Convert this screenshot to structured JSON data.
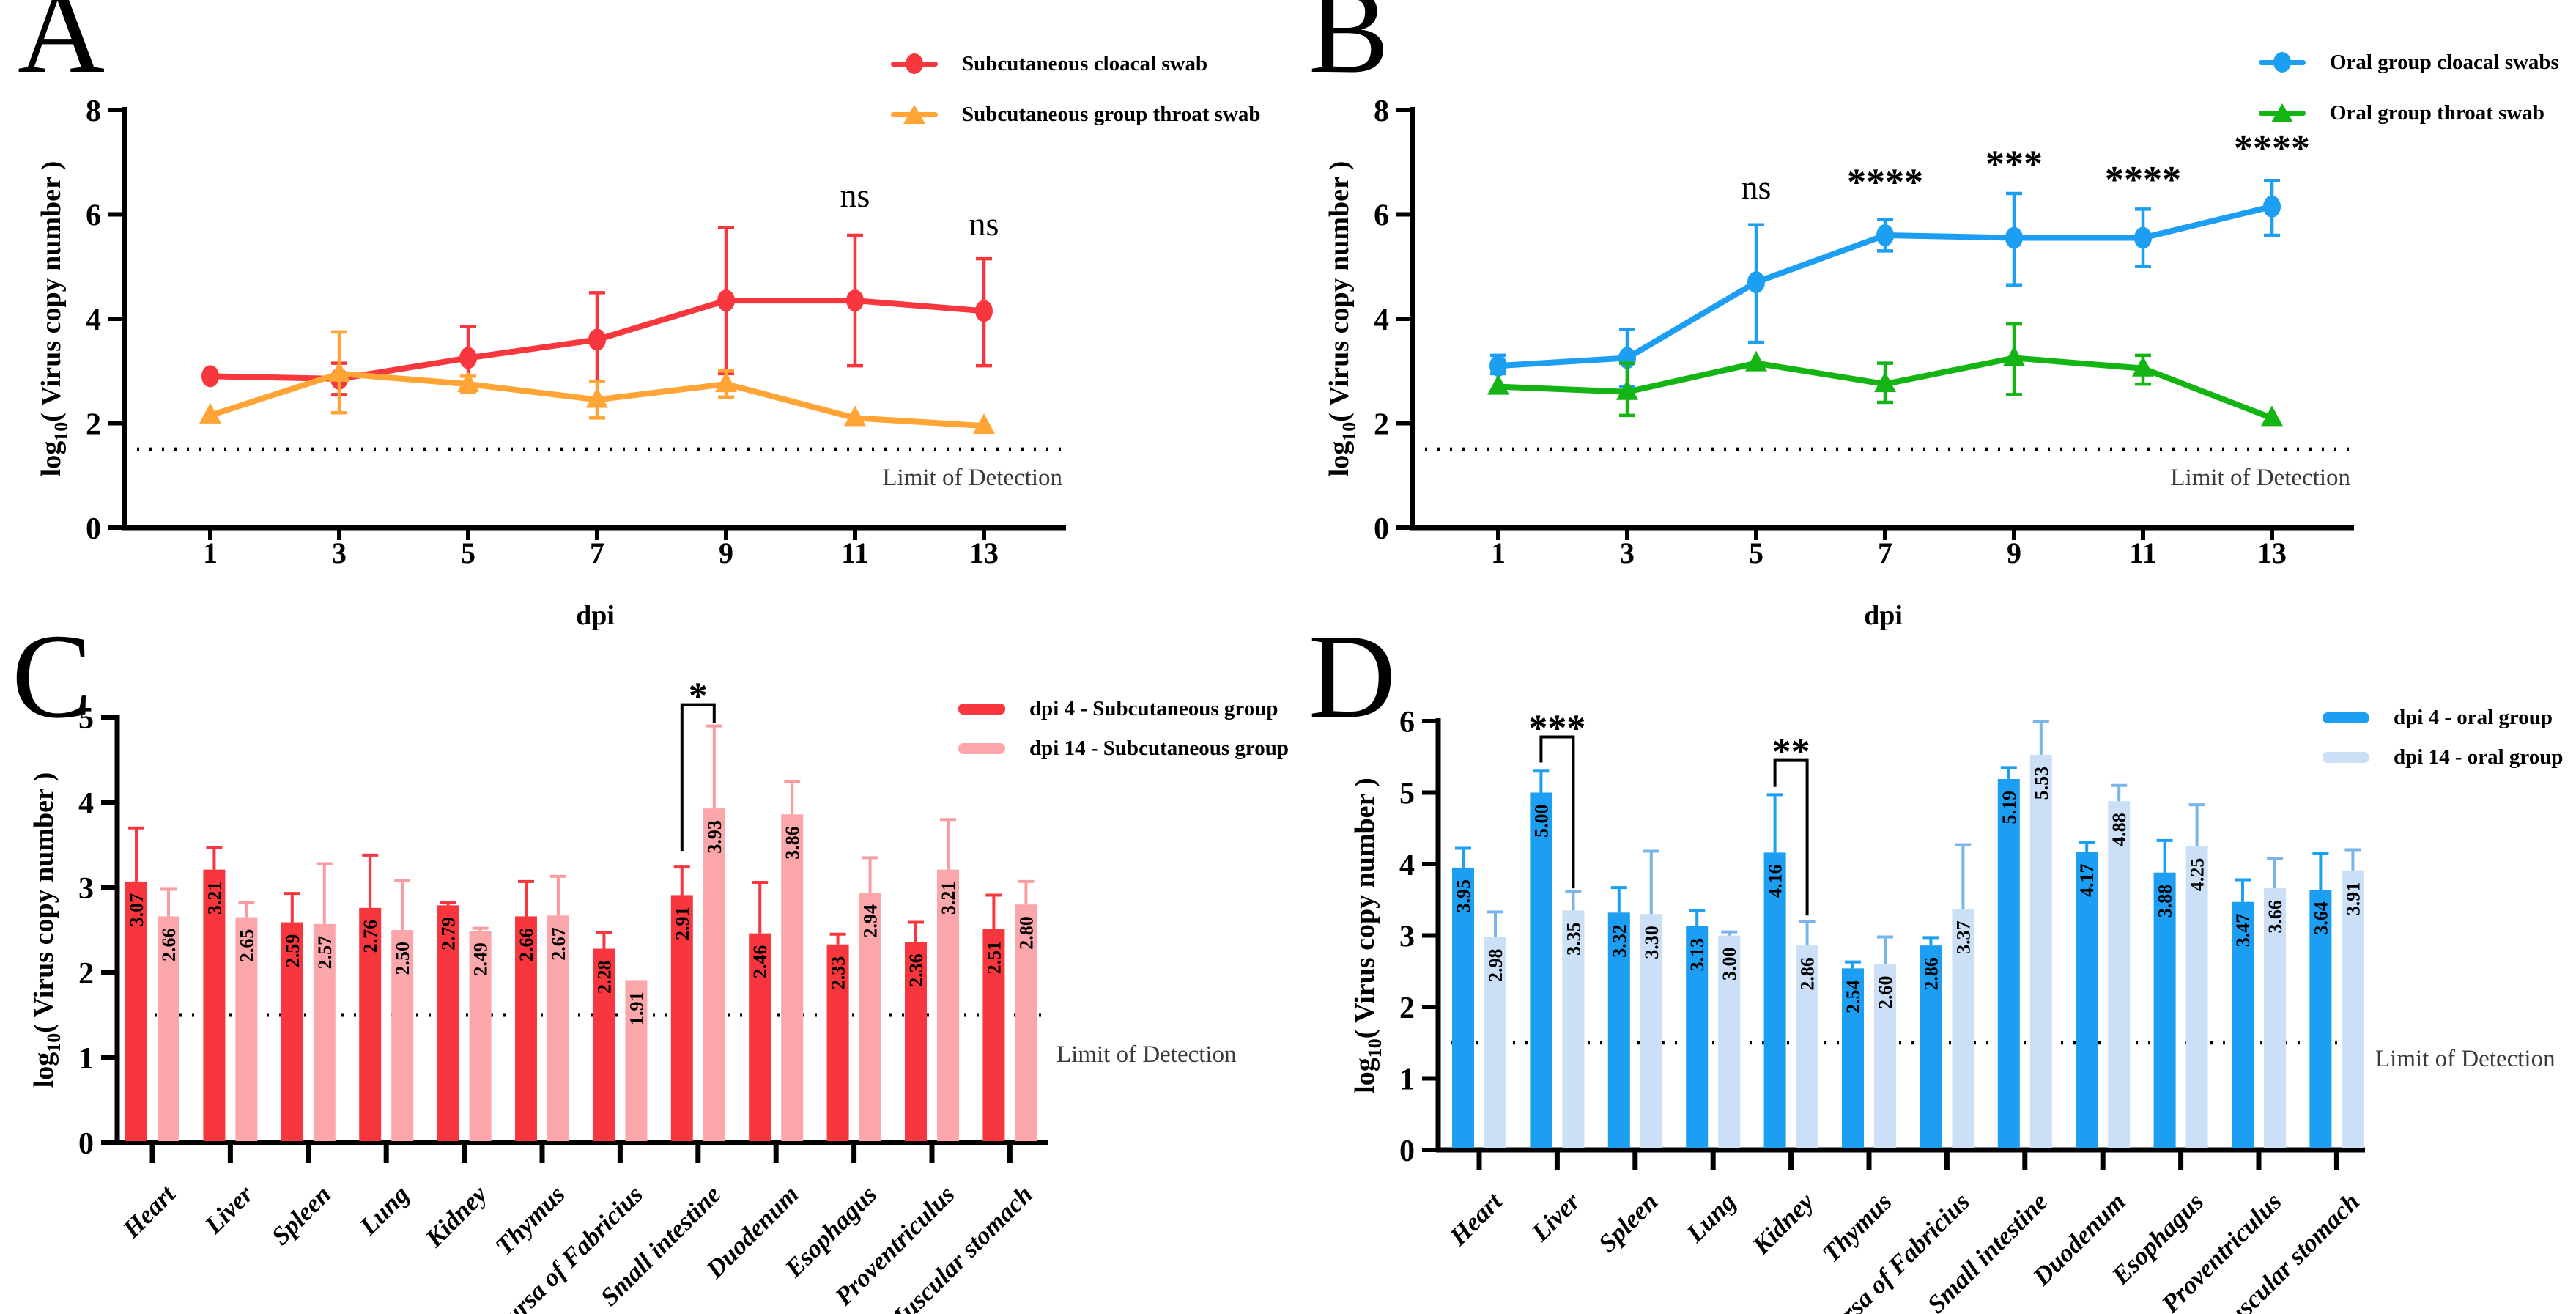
{
  "figure": {
    "background": "#ffffff"
  },
  "chart_data": [
    {
      "panel": "A",
      "type": "line",
      "xlabel": "dpi",
      "ylabel": "log10( Virus copy number )",
      "ylabel_parts": {
        "prefix": "log",
        "sub": "10",
        "rest": "( Virus copy number )"
      },
      "xticks": [
        1,
        3,
        5,
        7,
        9,
        11,
        13
      ],
      "ylim": [
        0,
        8
      ],
      "yticks": [
        0,
        2,
        4,
        6,
        8
      ],
      "limit_of_detection": {
        "value": 1.5,
        "label": "Limit of Detection"
      },
      "series": [
        {
          "name": "Subcutaneous cloacal swab",
          "color": "#F8363D",
          "marker": "circle",
          "x": [
            1,
            3,
            5,
            7,
            9,
            11,
            13
          ],
          "values": [
            2.9,
            2.85,
            3.25,
            3.6,
            4.35,
            4.35,
            4.15
          ],
          "err_hi": [
            null,
            3.15,
            3.85,
            4.5,
            5.75,
            5.6,
            5.15
          ],
          "err_lo": [
            null,
            2.55,
            2.65,
            2.8,
            2.95,
            3.1,
            3.1
          ]
        },
        {
          "name": "Subcutaneous group throat swab",
          "color": "#FFA435",
          "marker": "triangle",
          "x": [
            1,
            3,
            5,
            7,
            9,
            11,
            13
          ],
          "values": [
            2.15,
            2.95,
            2.75,
            2.45,
            2.75,
            2.1,
            1.95
          ],
          "err_hi": [
            null,
            3.75,
            2.9,
            2.8,
            3.0,
            null,
            null
          ],
          "err_lo": [
            null,
            2.2,
            2.6,
            2.1,
            2.5,
            null,
            null
          ]
        }
      ],
      "annotations": [
        {
          "x": 11,
          "y": 6.15,
          "text": "ns"
        },
        {
          "x": 13,
          "y": 5.6,
          "text": "ns"
        }
      ]
    },
    {
      "panel": "B",
      "type": "line",
      "xlabel": "dpi",
      "ylabel": "log10( Virus copy number )",
      "ylabel_parts": {
        "prefix": "log",
        "sub": "10",
        "rest": "( Virus copy number )"
      },
      "xticks": [
        1,
        3,
        5,
        7,
        9,
        11,
        13
      ],
      "ylim": [
        0,
        8
      ],
      "yticks": [
        0,
        2,
        4,
        6,
        8
      ],
      "limit_of_detection": {
        "value": 1.5,
        "label": "Limit of Detection"
      },
      "series": [
        {
          "name": "Oral group cloacal swabs",
          "color": "#1C9EF2",
          "marker": "circle",
          "x": [
            1,
            3,
            5,
            7,
            9,
            11,
            13
          ],
          "values": [
            3.1,
            3.25,
            4.7,
            5.6,
            5.55,
            5.55,
            6.15
          ],
          "err_hi": [
            3.3,
            3.8,
            5.8,
            5.9,
            6.4,
            6.1,
            6.65
          ],
          "err_lo": [
            2.95,
            2.7,
            3.55,
            5.3,
            4.65,
            5.0,
            5.6
          ]
        },
        {
          "name": "Oral group throat swab",
          "color": "#14B414",
          "marker": "triangle",
          "x": [
            1,
            3,
            5,
            7,
            9,
            11,
            13
          ],
          "values": [
            2.7,
            2.6,
            3.15,
            2.75,
            3.25,
            3.05,
            2.1
          ],
          "err_hi": [
            null,
            3.15,
            null,
            3.15,
            3.9,
            3.3,
            null
          ],
          "err_lo": [
            null,
            2.15,
            null,
            2.4,
            2.55,
            2.75,
            null
          ]
        }
      ],
      "annotations": [
        {
          "x": 5,
          "y": 6.3,
          "text": "ns"
        },
        {
          "x": 7,
          "y": 6.55,
          "text": "****"
        },
        {
          "x": 9,
          "y": 6.9,
          "text": "***"
        },
        {
          "x": 11,
          "y": 6.6,
          "text": "****"
        },
        {
          "x": 13,
          "y": 7.2,
          "text": "****"
        }
      ]
    },
    {
      "panel": "C",
      "type": "bar",
      "ylabel": "log10( Virus copy number )",
      "ylabel_parts": {
        "prefix": "log",
        "sub": "10",
        "rest": "( Virus copy number )"
      },
      "categories": [
        "Heart",
        "Liver",
        "Spleen",
        "Lung",
        "Kidney",
        "Thymus",
        "Bursa of Fabricius",
        "Small intestine",
        "Duodenum",
        "Esophagus",
        "Proventriculus",
        "Muscular stomach"
      ],
      "ylim": [
        0,
        5
      ],
      "yticks": [
        0,
        1,
        2,
        3,
        4,
        5
      ],
      "limit_of_detection": {
        "value": 1.5,
        "label": "Limit of Detection"
      },
      "series": [
        {
          "name": "dpi 4 - Subcutaneous group",
          "color": "#F8363D",
          "err_color": "#F8363D",
          "values": [
            3.07,
            3.21,
            2.59,
            2.76,
            2.79,
            2.66,
            2.28,
            2.91,
            2.46,
            2.33,
            2.36,
            2.51
          ],
          "err_hi": [
            3.7,
            3.47,
            2.93,
            3.38,
            2.82,
            3.07,
            2.47,
            3.24,
            3.06,
            2.45,
            2.59,
            2.91
          ]
        },
        {
          "name": "dpi 14 - Subcutaneous group",
          "color": "#FBA6AB",
          "err_color": "#F99CA2",
          "values": [
            2.66,
            2.65,
            2.57,
            2.5,
            2.49,
            2.67,
            1.91,
            3.93,
            3.86,
            2.94,
            3.21,
            2.8
          ],
          "err_hi": [
            2.98,
            2.82,
            3.28,
            3.08,
            2.52,
            3.13,
            null,
            4.9,
            4.25,
            3.35,
            3.8,
            3.07
          ]
        }
      ],
      "comparisons": [
        {
          "category": "Small intestine",
          "label": "*",
          "bar_y": 5.15,
          "left_from": 3.43,
          "right_to": 4.94
        }
      ]
    },
    {
      "panel": "D",
      "type": "bar",
      "ylabel": "log10( Virus copy number )",
      "ylabel_parts": {
        "prefix": "log",
        "sub": "10",
        "rest": "( Virus copy number )"
      },
      "categories": [
        "Heart",
        "Liver",
        "Spleen",
        "Lung",
        "Kidney",
        "Thymus",
        "Bursa of Fabricius",
        "Small intestine",
        "Duodenum",
        "Esophagus",
        "Proventriculus",
        "Muscular stomach"
      ],
      "ylim": [
        0,
        6
      ],
      "yticks": [
        0,
        1,
        2,
        3,
        4,
        5,
        6
      ],
      "limit_of_detection": {
        "value": 1.5,
        "label": "Limit of Detection"
      },
      "series": [
        {
          "name": "dpi 4 - oral group",
          "color": "#1C9EF2",
          "err_color": "#1C9EF2",
          "values": [
            3.95,
            5.0,
            3.32,
            3.13,
            4.16,
            2.54,
            2.86,
            5.19,
            4.17,
            3.88,
            3.47,
            3.64
          ],
          "err_hi": [
            4.22,
            5.3,
            3.67,
            3.35,
            4.97,
            2.63,
            2.97,
            5.35,
            4.3,
            4.33,
            3.78,
            4.15
          ]
        },
        {
          "name": "dpi 14 - oral group",
          "color": "#CBE0F6",
          "err_color": "#79B4EA",
          "values": [
            2.98,
            3.35,
            3.3,
            3.0,
            2.86,
            2.6,
            3.37,
            5.53,
            4.88,
            4.25,
            3.66,
            3.91
          ],
          "err_hi": [
            3.33,
            3.62,
            4.18,
            3.05,
            3.2,
            2.98,
            4.27,
            6.0,
            5.1,
            4.83,
            4.08,
            4.2
          ]
        }
      ],
      "comparisons": [
        {
          "category": "Liver",
          "label": "***",
          "bar_y": 5.78,
          "left_from": 5.42,
          "right_to": 3.66
        },
        {
          "category": "Kidney",
          "label": "**",
          "bar_y": 5.45,
          "left_from": 5.08,
          "right_to": 3.28
        }
      ]
    }
  ]
}
